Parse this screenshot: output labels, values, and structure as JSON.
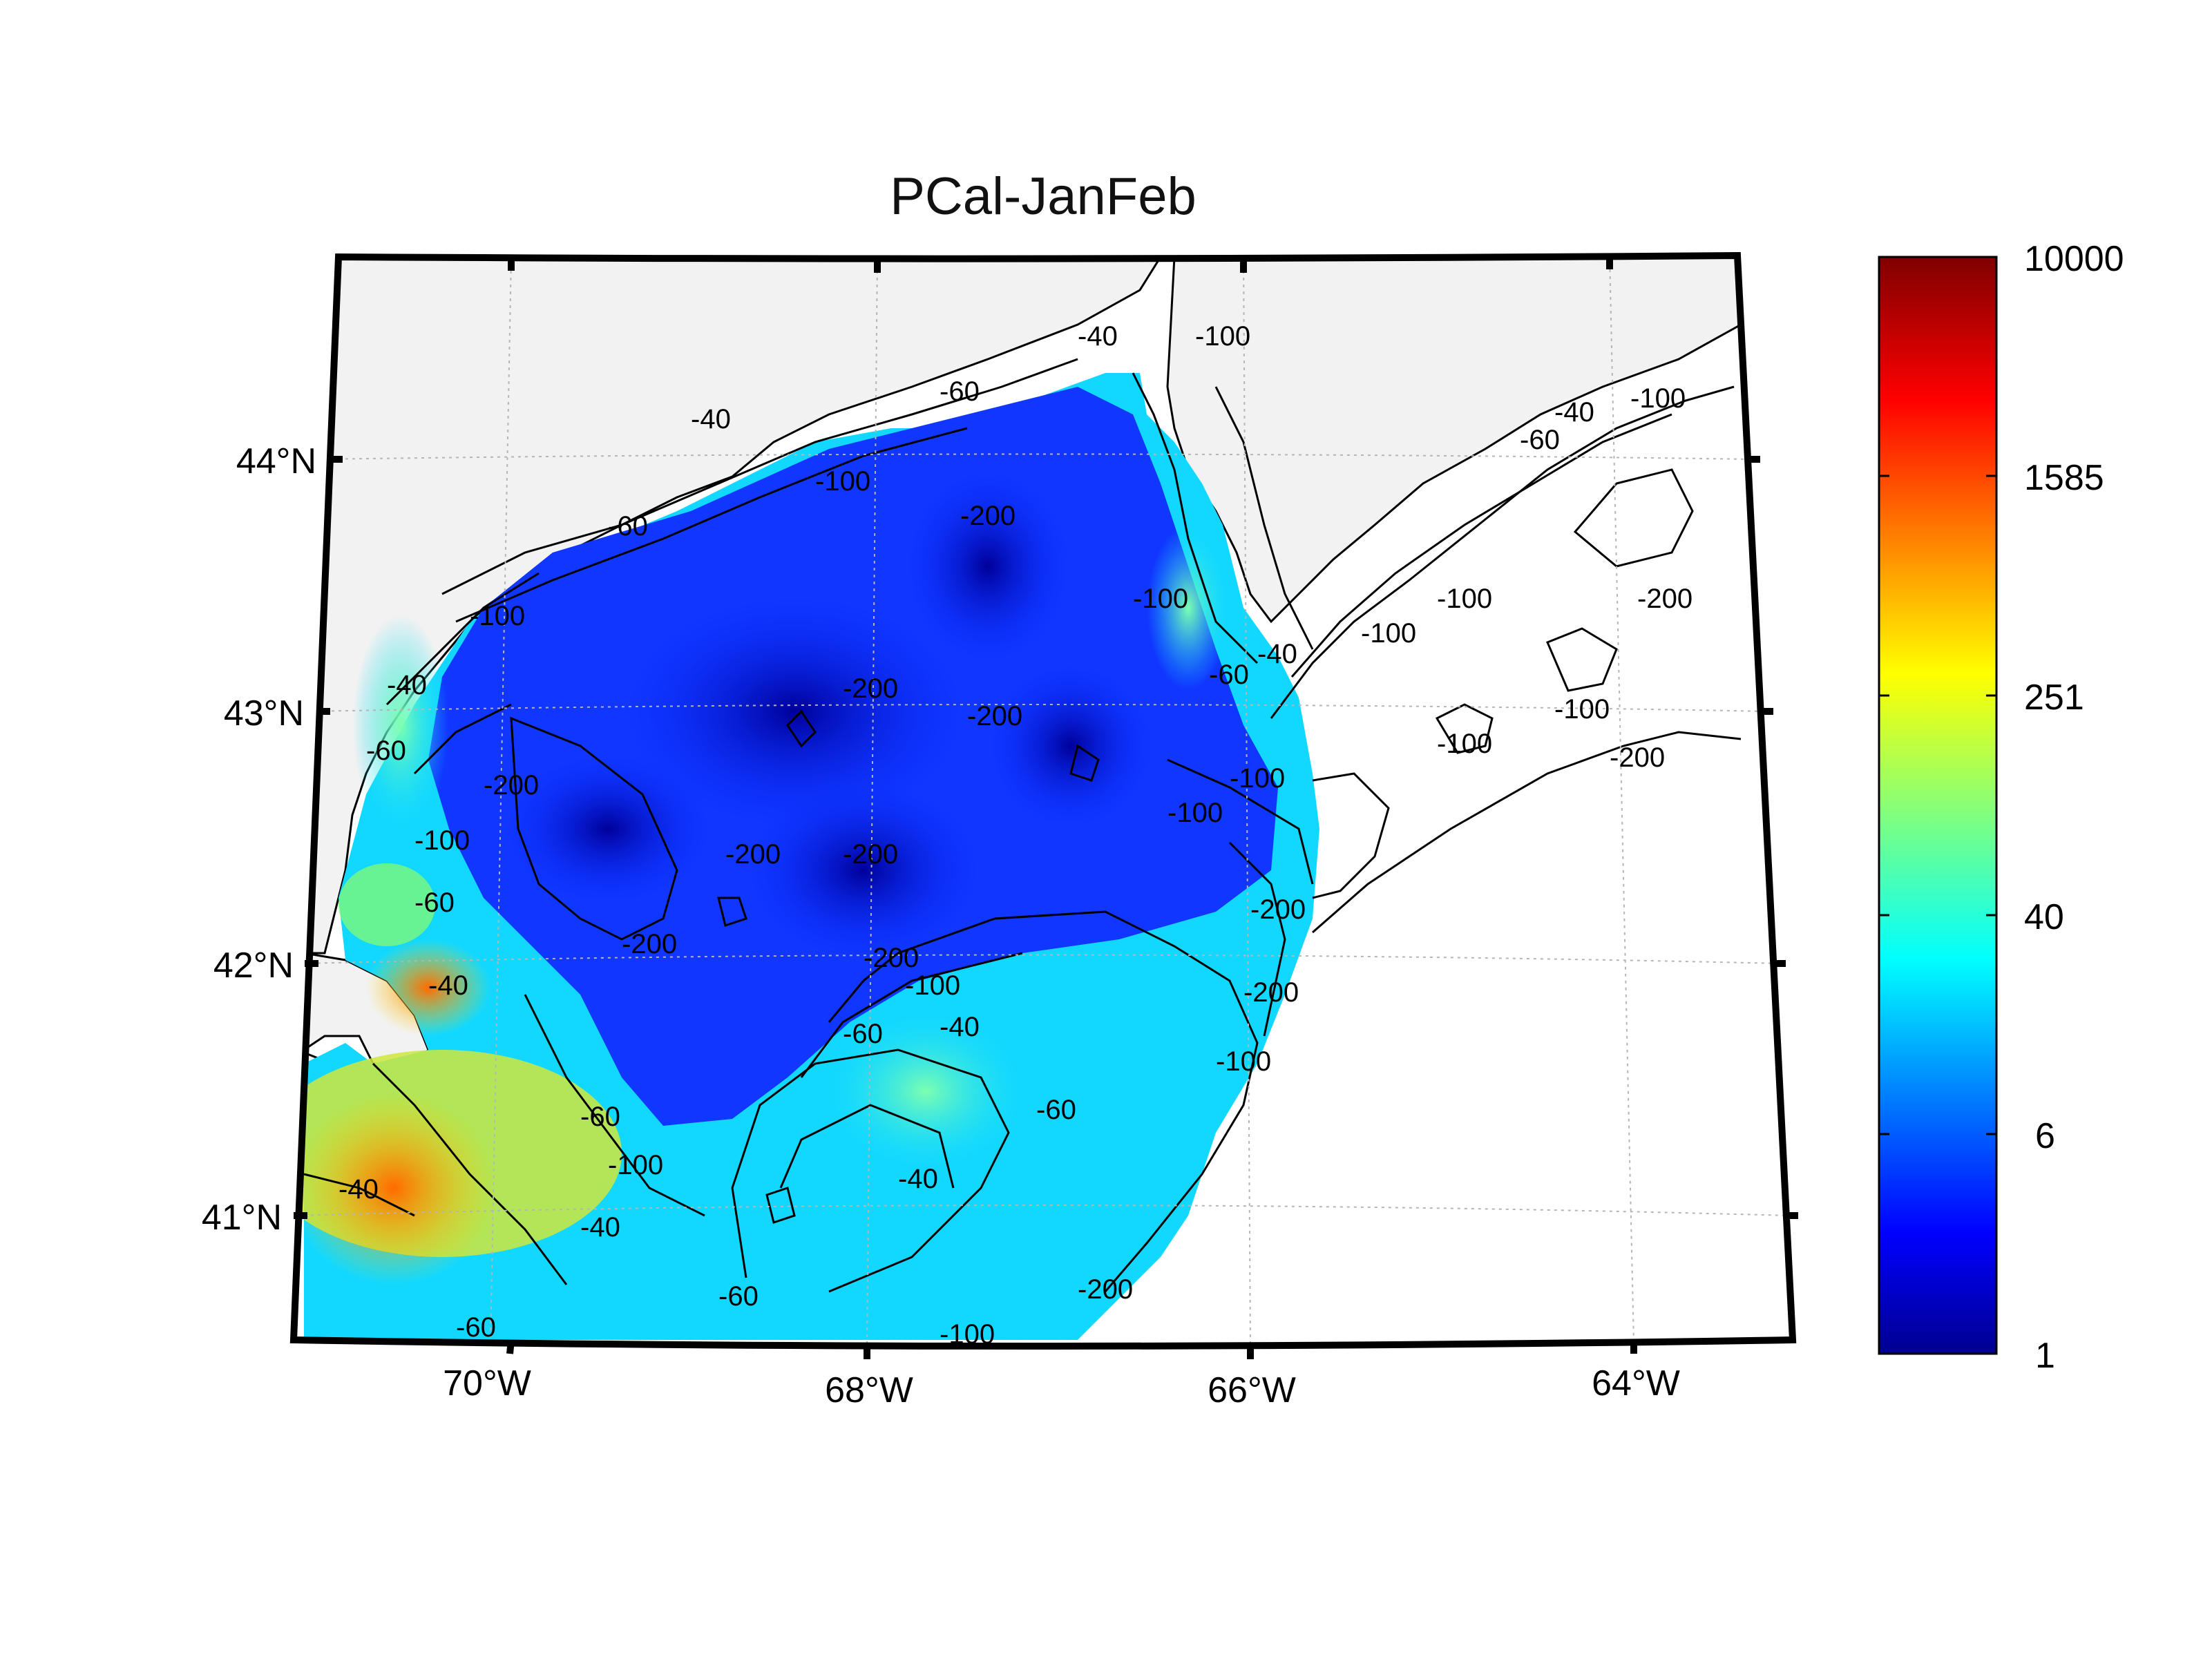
{
  "chart_data": {
    "type": "heatmap",
    "title": "PCal-JanFeb",
    "lon_ticks": [
      "70°W",
      "68°W",
      "66°W",
      "64°W"
    ],
    "lat_ticks": [
      "44°N",
      "43°N",
      "42°N",
      "41°N"
    ],
    "colorbar": {
      "scale": "log",
      "ticks": [
        "10000",
        "1585",
        "251",
        "40",
        "6",
        "1"
      ],
      "values": [
        10000,
        1585,
        251,
        40,
        6,
        1
      ],
      "colormap": "jet"
    },
    "contour_levels": [
      -40,
      -60,
      -100,
      -200
    ],
    "contour_labels": [
      "-40",
      "-60",
      "-100",
      "-200"
    ],
    "grid": true,
    "colors": {
      "land": "#f2f2f2",
      "frame": "#000000",
      "contour": "#000000"
    }
  }
}
